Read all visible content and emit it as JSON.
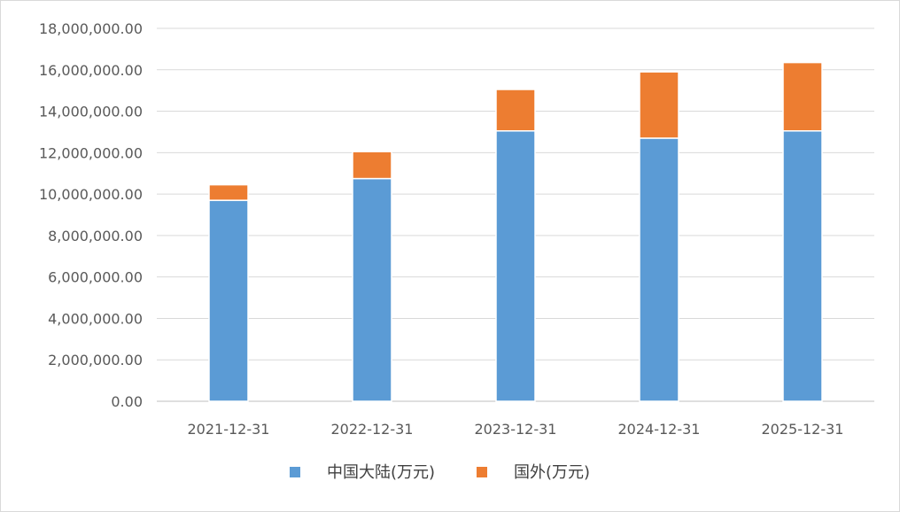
{
  "chart_data": {
    "type": "bar",
    "stacked": true,
    "categories": [
      "2021-12-31",
      "2022-12-31",
      "2023-12-31",
      "2024-12-31",
      "2025-12-31"
    ],
    "series": [
      {
        "name": "中国大陆(万元)",
        "color": "#5b9bd5",
        "values": [
          9700000,
          10750000,
          13050000,
          12700000,
          13050000
        ]
      },
      {
        "name": "国外(万元)",
        "color": "#ed7d31",
        "values": [
          750000,
          1300000,
          2000000,
          3200000,
          3300000
        ]
      }
    ],
    "ylim": [
      0,
      18000000
    ],
    "yticks": [
      0,
      2000000,
      4000000,
      6000000,
      8000000,
      10000000,
      12000000,
      14000000,
      16000000,
      18000000
    ],
    "ytick_labels": [
      "0.00",
      "2,000,000.00",
      "4,000,000.00",
      "6,000,000.00",
      "8,000,000.00",
      "10,000,000.00",
      "12,000,000.00",
      "14,000,000.00",
      "16,000,000.00",
      "18,000,000.00"
    ],
    "grid": true,
    "legend": "bottom",
    "title": "",
    "xlabel": "",
    "ylabel": ""
  }
}
